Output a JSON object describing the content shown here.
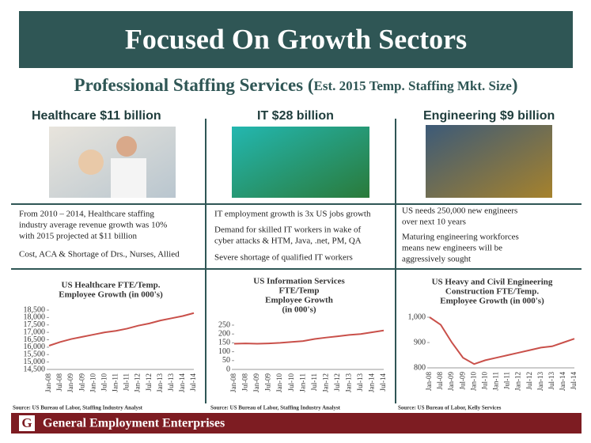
{
  "header": {
    "title": "Focused On Growth Sectors"
  },
  "subtitle": {
    "main": "Professional Staffing Services (",
    "note": "Est. 2015 Temp. Staffing Mkt. Size",
    "close": ")"
  },
  "columns": [
    {
      "heading": "Healthcare $11 billion",
      "bullets": [
        [
          "From 2010 – 2014, Healthcare staffing",
          "industry average revenue growth was 10%",
          "with 2015 projected at $11 billion"
        ],
        [
          "Cost, ACA  & Shortage of Drs., Nurses, Allied"
        ]
      ]
    },
    {
      "heading": "IT $28 billion",
      "bullets": [
        [
          "IT employment growth is 3x US jobs growth"
        ],
        [
          "Demand for skilled IT workers in wake of",
          "cyber attacks & HTM, Java, .net, PM, QA"
        ],
        [
          "Severe shortage of qualified IT workers"
        ]
      ]
    },
    {
      "heading": "Engineering $9 billion",
      "bullets": [
        [
          "US needs 250,000 new engineers",
          "over next 10 years"
        ],
        [
          "Maturing engineering workforces",
          "means new engineers will be",
          "aggressively sought"
        ]
      ]
    }
  ],
  "chart_data": [
    {
      "type": "line",
      "title": [
        "US Healthcare FTE/Temp.",
        "Employee Growth (in 000's)"
      ],
      "categories": [
        "Jan-08",
        "Jul-08",
        "Jan-09",
        "Jul-09",
        "Jan-10",
        "Jul-10",
        "Jan-11",
        "Jul-11",
        "Jan-12",
        "Jul-12",
        "Jan-13",
        "Jul-13",
        "Jan-14",
        "Jul-14"
      ],
      "values": [
        16100,
        16350,
        16550,
        16700,
        16850,
        17000,
        17100,
        17250,
        17450,
        17600,
        17800,
        17950,
        18100,
        18300
      ],
      "color": "#c9504a",
      "ylim": [
        14500,
        18500
      ],
      "yticks": [
        {
          "value": 14500,
          "label": "14,500"
        },
        {
          "value": 15000,
          "label": "15,000"
        },
        {
          "value": 15500,
          "label": "15,500"
        },
        {
          "value": 16000,
          "label": "16,000"
        },
        {
          "value": 16500,
          "label": "16,500"
        },
        {
          "value": 17000,
          "label": "17,000"
        },
        {
          "value": 17500,
          "label": "17,500"
        },
        {
          "value": 18000,
          "label": "18,000"
        },
        {
          "value": 18500,
          "label": "18,500"
        }
      ],
      "source": "Source: US Bureau of Labor, Staffing Industry Analyst"
    },
    {
      "type": "line",
      "title": [
        "US Information Services",
        "FTE/Temp",
        "Employee Growth",
        "(in 000's)"
      ],
      "categories": [
        "Jan-08",
        "Jul-08",
        "Jan-09",
        "Jul-09",
        "Jan-10",
        "Jul-10",
        "Jan-11",
        "Jul-11",
        "Jan-12",
        "Jul-12",
        "Jan-13",
        "Jul-13",
        "Jan-14",
        "Jul-14"
      ],
      "values": [
        145,
        147,
        145,
        147,
        150,
        155,
        160,
        172,
        180,
        187,
        195,
        200,
        210,
        220
      ],
      "color": "#c9504a",
      "ylim": [
        0,
        250
      ],
      "yticks": [
        0,
        50,
        100,
        150,
        200,
        250
      ],
      "source": "Source: US Bureau of Labor, Staffing Industry Analyst"
    },
    {
      "type": "line",
      "title": [
        "US Heavy and Civil Engineering",
        "Construction FTE/Temp.",
        "Employee Growth (in 000's)"
      ],
      "categories": [
        "Jan-08",
        "Jul-08",
        "Jan-09",
        "Jul-09",
        "Jan-10",
        "Jul-10",
        "Jan-11",
        "Jul-11",
        "Jan-12",
        "Jul-12",
        "Jan-13",
        "Jul-13",
        "Jan-14",
        "Jul-14"
      ],
      "values": [
        1000,
        970,
        900,
        840,
        815,
        830,
        840,
        850,
        860,
        870,
        880,
        885,
        900,
        915
      ],
      "color": "#c9504a",
      "ylim": [
        800,
        1000
      ],
      "yticks": [
        800,
        900,
        {
          "value": 1000,
          "label": "1,000"
        }
      ],
      "source": "Source: US Bureau of Labor, Kelly Services"
    }
  ],
  "footer": {
    "logo": "G",
    "company": "General Employment Enterprises"
  }
}
